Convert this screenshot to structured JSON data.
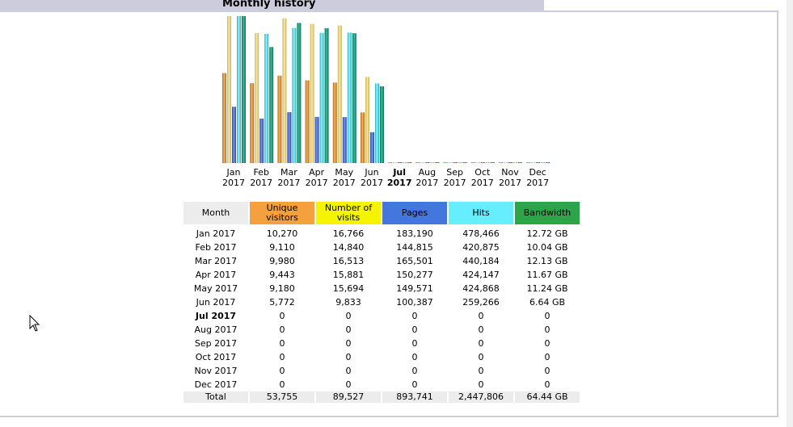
{
  "title": "Monthly history",
  "colors": {
    "unique_visitors": "#f4a03c",
    "visits": "#f4f400",
    "pages": "#4477dd",
    "hits": "#66eeff",
    "bandwidth": "#2ea44a",
    "header_bar": "#ccccdd"
  },
  "chart_data": {
    "type": "bar",
    "categories": [
      "Jan 2017",
      "Feb 2017",
      "Mar 2017",
      "Apr 2017",
      "May 2017",
      "Jun 2017",
      "Jul 2017",
      "Aug 2017",
      "Sep 2017",
      "Oct 2017",
      "Nov 2017",
      "Dec 2017"
    ],
    "series": [
      {
        "name": "Unique visitors",
        "values": [
          10270,
          9110,
          9980,
          9443,
          9180,
          5772,
          0,
          0,
          0,
          0,
          0,
          0
        ]
      },
      {
        "name": "Number of visits",
        "values": [
          16766,
          14840,
          16513,
          15881,
          15694,
          9833,
          0,
          0,
          0,
          0,
          0,
          0
        ]
      },
      {
        "name": "Pages",
        "values": [
          183190,
          144815,
          165501,
          150277,
          149571,
          100387,
          0,
          0,
          0,
          0,
          0,
          0
        ]
      },
      {
        "name": "Hits",
        "values": [
          478466,
          420875,
          440184,
          424147,
          424868,
          259266,
          0,
          0,
          0,
          0,
          0,
          0
        ]
      },
      {
        "name": "Bandwidth",
        "values": [
          12.72,
          10.04,
          12.13,
          11.67,
          11.24,
          6.64,
          0,
          0,
          0,
          0,
          0,
          0
        ]
      }
    ],
    "current_month_index": 6
  },
  "x_labels": [
    {
      "month": "Jan",
      "year": "2017"
    },
    {
      "month": "Feb",
      "year": "2017"
    },
    {
      "month": "Mar",
      "year": "2017"
    },
    {
      "month": "Apr",
      "year": "2017"
    },
    {
      "month": "May",
      "year": "2017"
    },
    {
      "month": "Jun",
      "year": "2017"
    },
    {
      "month": "Jul",
      "year": "2017"
    },
    {
      "month": "Aug",
      "year": "2017"
    },
    {
      "month": "Sep",
      "year": "2017"
    },
    {
      "month": "Oct",
      "year": "2017"
    },
    {
      "month": "Nov",
      "year": "2017"
    },
    {
      "month": "Dec",
      "year": "2017"
    }
  ],
  "table": {
    "headers": {
      "month": "Month",
      "unique_visitors": "Unique visitors",
      "visits": "Number of visits",
      "pages": "Pages",
      "hits": "Hits",
      "bandwidth": "Bandwidth"
    },
    "rows": [
      [
        "Jan 2017",
        "10,270",
        "16,766",
        "183,190",
        "478,466",
        "12.72 GB"
      ],
      [
        "Feb 2017",
        "9,110",
        "14,840",
        "144,815",
        "420,875",
        "10.04 GB"
      ],
      [
        "Mar 2017",
        "9,980",
        "16,513",
        "165,501",
        "440,184",
        "12.13 GB"
      ],
      [
        "Apr 2017",
        "9,443",
        "15,881",
        "150,277",
        "424,147",
        "11.67 GB"
      ],
      [
        "May 2017",
        "9,180",
        "15,694",
        "149,571",
        "424,868",
        "11.24 GB"
      ],
      [
        "Jun 2017",
        "5,772",
        "9,833",
        "100,387",
        "259,266",
        "6.64 GB"
      ],
      [
        "Jul 2017",
        "0",
        "0",
        "0",
        "0",
        "0"
      ],
      [
        "Aug 2017",
        "0",
        "0",
        "0",
        "0",
        "0"
      ],
      [
        "Sep 2017",
        "0",
        "0",
        "0",
        "0",
        "0"
      ],
      [
        "Oct 2017",
        "0",
        "0",
        "0",
        "0",
        "0"
      ],
      [
        "Nov 2017",
        "0",
        "0",
        "0",
        "0",
        "0"
      ],
      [
        "Dec 2017",
        "0",
        "0",
        "0",
        "0",
        "0"
      ]
    ],
    "total": [
      "Total",
      "53,755",
      "89,527",
      "893,741",
      "2,447,806",
      "64.44 GB"
    ]
  }
}
